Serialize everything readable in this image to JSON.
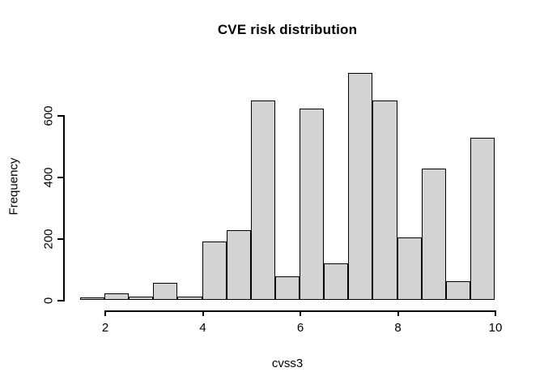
{
  "chart_data": {
    "type": "bar",
    "subtype": "histogram",
    "title": "CVE risk distribution",
    "xlabel": "cvss3",
    "ylabel": "Frequency",
    "bin_width": 0.5,
    "bin_edges": [
      1.5,
      2.0,
      2.5,
      3.0,
      3.5,
      4.0,
      4.5,
      5.0,
      5.5,
      6.0,
      6.5,
      7.0,
      7.5,
      8.0,
      8.5,
      9.0,
      9.5,
      10.0
    ],
    "counts": [
      4,
      23,
      12,
      55,
      10,
      190,
      228,
      648,
      77,
      622,
      118,
      737,
      648,
      203,
      427,
      60,
      527
    ],
    "x_ticks": [
      2,
      4,
      6,
      8,
      10
    ],
    "y_ticks": [
      0,
      200,
      400,
      600
    ],
    "xlim": [
      1.5,
      10
    ],
    "ylim": [
      0,
      740
    ],
    "bar_fill": "#d3d3d3",
    "bar_stroke": "#000000",
    "background": "#ffffff",
    "grid": false,
    "legend": "none"
  }
}
